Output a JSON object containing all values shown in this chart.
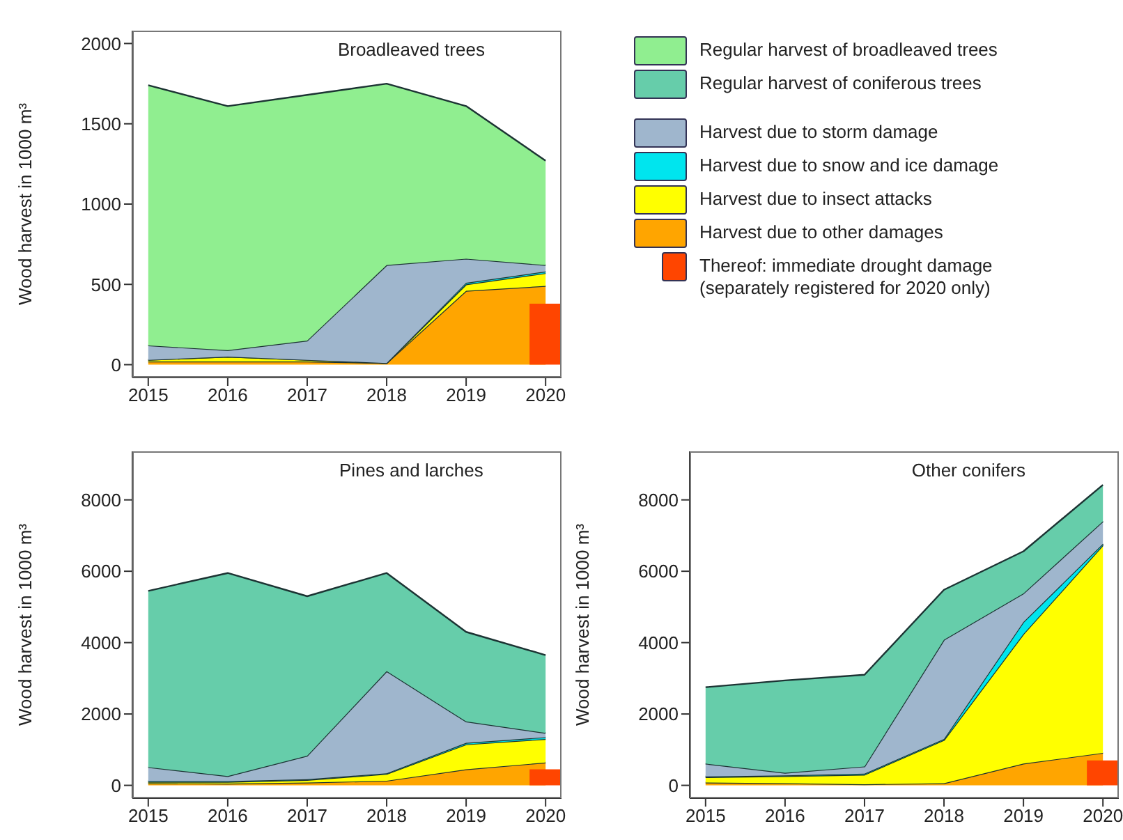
{
  "chart_data": [
    {
      "type": "area",
      "title": "Broadleaved trees",
      "ylabel": "Wood harvest in 1000 m³",
      "x": [
        2015,
        2016,
        2017,
        2018,
        2019,
        2020
      ],
      "xlim": [
        2014.8,
        2020.2
      ],
      "xticks": [
        2015,
        2016,
        2017,
        2018,
        2019,
        2020
      ],
      "ylim": [
        -80,
        2080
      ],
      "yticks": [
        0,
        500,
        1000,
        1500,
        2000
      ],
      "stacked": true,
      "legend": "right",
      "series": [
        {
          "name": "Harvest due to other damages",
          "color": "#ffa500",
          "values": [
            20,
            20,
            20,
            10,
            460,
            490
          ]
        },
        {
          "name": "Harvest due to insect attacks",
          "color": "#ffff00",
          "values": [
            10,
            30,
            10,
            0,
            40,
            80
          ]
        },
        {
          "name": "Harvest due to snow and ice damage",
          "color": "#00e5ee",
          "values": [
            0,
            0,
            0,
            0,
            10,
            10
          ]
        },
        {
          "name": "Harvest due to storm damage",
          "color": "#9fb6cd",
          "values": [
            90,
            40,
            120,
            610,
            150,
            40
          ]
        },
        {
          "name": "Regular harvest of broadleaved trees",
          "color": "#90ee90",
          "values": [
            1620,
            1520,
            1530,
            1130,
            950,
            650
          ]
        },
        {
          "type": "bar",
          "name": "Thereof: immediate drought damage (separately registered for 2020 only)",
          "color": "#ff4500",
          "values": [
            null,
            null,
            null,
            null,
            null,
            380
          ]
        }
      ]
    },
    {
      "type": "area",
      "title": "Pines and larches",
      "ylabel": "Wood harvest in 1000 m³",
      "x": [
        2015,
        2016,
        2017,
        2018,
        2019,
        2020
      ],
      "xlim": [
        2014.8,
        2020.2
      ],
      "xticks": [
        2015,
        2016,
        2017,
        2018,
        2019,
        2020
      ],
      "ylim": [
        -360,
        9360
      ],
      "yticks": [
        0,
        2000,
        4000,
        6000,
        8000
      ],
      "stacked": true,
      "series": [
        {
          "name": "Harvest due to other damages",
          "color": "#ffa500",
          "values": [
            60,
            50,
            80,
            130,
            450,
            640
          ]
        },
        {
          "name": "Harvest due to insect attacks",
          "color": "#ffff00",
          "values": [
            40,
            50,
            70,
            190,
            700,
            660
          ]
        },
        {
          "name": "Harvest due to snow and ice damage",
          "color": "#00e5ee",
          "values": [
            20,
            20,
            20,
            20,
            40,
            50
          ]
        },
        {
          "name": "Harvest due to storm damage",
          "color": "#9fb6cd",
          "values": [
            390,
            140,
            660,
            2860,
            600,
            120
          ]
        },
        {
          "name": "Regular harvest of coniferous trees",
          "color": "#66cdaa",
          "values": [
            4940,
            5690,
            4470,
            2750,
            2510,
            2180
          ]
        },
        {
          "type": "bar",
          "name": "Thereof: immediate drought damage (separately registered for 2020 only)",
          "color": "#ff4500",
          "values": [
            null,
            null,
            null,
            null,
            null,
            450
          ]
        }
      ]
    },
    {
      "type": "area",
      "title": "Other conifers",
      "ylabel": "Wood harvest in 1000 m³",
      "x": [
        2015,
        2016,
        2017,
        2018,
        2019,
        2020
      ],
      "xlim": [
        2014.8,
        2020.2
      ],
      "xticks": [
        2015,
        2016,
        2017,
        2018,
        2019,
        2020
      ],
      "ylim": [
        -360,
        9360
      ],
      "yticks": [
        0,
        2000,
        4000,
        6000,
        8000
      ],
      "stacked": true,
      "series": [
        {
          "name": "Harvest due to other damages",
          "color": "#ffa500",
          "values": [
            80,
            60,
            30,
            60,
            610,
            910
          ]
        },
        {
          "name": "Harvest due to insect attacks",
          "color": "#ffff00",
          "values": [
            150,
            200,
            270,
            1210,
            3630,
            5820
          ]
        },
        {
          "name": "Harvest due to snow and ice damage",
          "color": "#00e5ee",
          "values": [
            20,
            20,
            30,
            30,
            340,
            40
          ]
        },
        {
          "name": "Harvest due to storm damage",
          "color": "#9fb6cd",
          "values": [
            360,
            70,
            200,
            2780,
            800,
            630
          ]
        },
        {
          "name": "Regular harvest of coniferous trees",
          "color": "#66cdaa",
          "values": [
            2140,
            2590,
            2570,
            1400,
            1180,
            1020
          ]
        },
        {
          "type": "bar",
          "name": "Thereof: immediate drought damage (separately registered for 2020 only)",
          "color": "#ff4500",
          "values": [
            null,
            null,
            null,
            null,
            null,
            700
          ]
        }
      ]
    }
  ]
}
